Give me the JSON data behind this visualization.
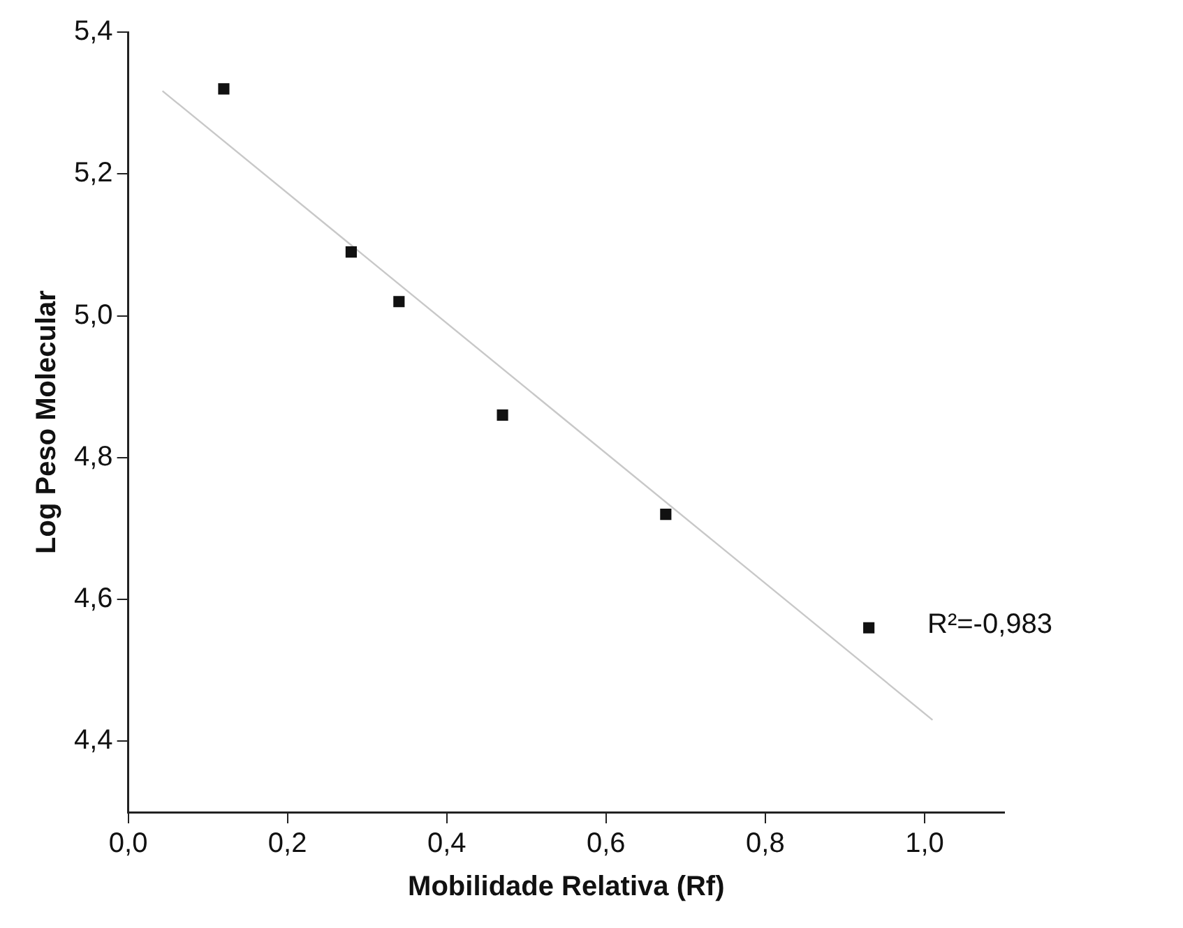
{
  "chart_data": {
    "type": "scatter",
    "xlabel": "Mobilidade Relativa (Rf)",
    "ylabel": "Log Peso Molecular",
    "series": [
      {
        "color": "#111111",
        "x": [
          0.12,
          0.28,
          0.34,
          0.47,
          0.675,
          0.93
        ],
        "values": [
          5.32,
          5.09,
          5.02,
          4.86,
          4.72,
          4.56
        ]
      },
      {
        "type": "line",
        "color": "#c8c8c8",
        "marker": "none",
        "x": [
          0.043,
          1.01
        ],
        "values": [
          5.317,
          4.43
        ]
      }
    ],
    "marker": "square",
    "grid": false,
    "legend": false,
    "xlim": [
      0,
      1.1
    ],
    "xticks": [
      {
        "value": 0,
        "label": "0,0"
      },
      {
        "value": 0.2,
        "label": "0,2"
      },
      {
        "value": 0.4,
        "label": "0,4"
      },
      {
        "value": 0.6,
        "label": "0,6"
      },
      {
        "value": 0.8,
        "label": "0,8"
      },
      {
        "value": 1.0,
        "label": "1,0"
      }
    ],
    "ylim": [
      4.3,
      5.4
    ],
    "yticks": [
      {
        "value": 4.4,
        "label": "4,4"
      },
      {
        "value": 4.6,
        "label": "4,6"
      },
      {
        "value": 4.8,
        "label": "4,8"
      },
      {
        "value": 5.0,
        "label": "5,0"
      },
      {
        "value": 5.2,
        "label": "5,2"
      },
      {
        "value": 5.4,
        "label": "5,4"
      }
    ],
    "annotations": [
      "R²=-0,983"
    ]
  }
}
